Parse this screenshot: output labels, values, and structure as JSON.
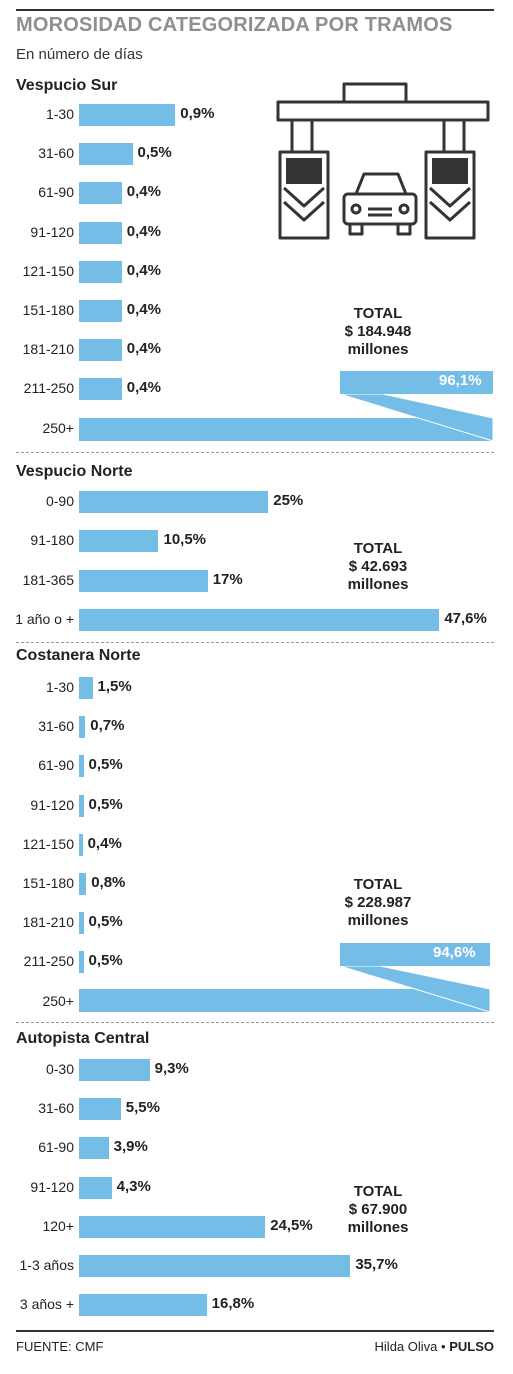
{
  "header": {
    "title": "MOROSIDAD CATEGORIZADA POR TRAMOS",
    "subtitle": "En número de días"
  },
  "footer": {
    "source": "FUENTE: CMF",
    "author": "Hilda Oliva",
    "separator": "•",
    "outlet": "PULSO"
  },
  "icon": "toll-booth-car-icon",
  "colors": {
    "bar": "#74bde6",
    "title": "#8f8f8f",
    "text": "#222222"
  },
  "chart_data": [
    {
      "type": "bar",
      "orientation": "horizontal",
      "title": "Vespucio Sur",
      "categories": [
        "1-30",
        "31-60",
        "61-90",
        "91-120",
        "121-150",
        "151-180",
        "181-210",
        "211-250",
        "250+"
      ],
      "values": [
        0.9,
        0.5,
        0.4,
        0.4,
        0.4,
        0.4,
        0.4,
        0.4,
        96.1
      ],
      "labels": [
        "0,9%",
        "0,5%",
        "0,4%",
        "0,4%",
        "0,4%",
        "0,4%",
        "0,4%",
        "0,4%",
        "96,1%"
      ],
      "unit": "%",
      "total_lines": [
        "TOTAL",
        "$ 184.948",
        "millones"
      ]
    },
    {
      "type": "bar",
      "orientation": "horizontal",
      "title": "Vespucio Norte",
      "categories": [
        "0-90",
        "91-180",
        "181-365",
        "1 año o +"
      ],
      "values": [
        25,
        10.5,
        17,
        47.6
      ],
      "labels": [
        "25%",
        "10,5%",
        "17%",
        "47,6%"
      ],
      "unit": "%",
      "total_lines": [
        "TOTAL",
        "$ 42.693",
        "millones"
      ]
    },
    {
      "type": "bar",
      "orientation": "horizontal",
      "title": "Costanera Norte",
      "categories": [
        "1-30",
        "31-60",
        "61-90",
        "91-120",
        "121-150",
        "151-180",
        "181-210",
        "211-250",
        "250+"
      ],
      "values": [
        1.5,
        0.7,
        0.5,
        0.5,
        0.4,
        0.8,
        0.5,
        0.5,
        94.6
      ],
      "labels": [
        "1,5%",
        "0,7%",
        "0,5%",
        "0,5%",
        "0,4%",
        "0,8%",
        "0,5%",
        "0,5%",
        "94,6%"
      ],
      "unit": "%",
      "total_lines": [
        "TOTAL",
        "$ 228.987",
        "millones"
      ]
    },
    {
      "type": "bar",
      "orientation": "horizontal",
      "title": "Autopista Central",
      "categories": [
        "0-30",
        "31-60",
        "61-90",
        "91-120",
        "120+",
        "1-3 años",
        "3 años +"
      ],
      "values": [
        9.3,
        5.5,
        3.9,
        4.3,
        24.5,
        35.7,
        16.8
      ],
      "labels": [
        "9,3%",
        "5,5%",
        "3,9%",
        "4,3%",
        "24,5%",
        "35,7%",
        "16,8%"
      ],
      "unit": "%",
      "total_lines": [
        "TOTAL",
        "$ 67.900",
        "millones"
      ]
    }
  ]
}
